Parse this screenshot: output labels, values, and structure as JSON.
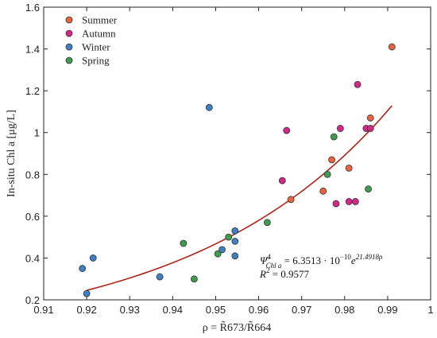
{
  "chart_data": {
    "type": "scatter",
    "xlabel": "ρ = R̃673/R̃664",
    "ylabel": "In-situ Chl a [μg/L]",
    "xlim": [
      0.91,
      1.0
    ],
    "ylim": [
      0.2,
      1.6
    ],
    "xticks": [
      "0.91",
      "0.92",
      "0.93",
      "0.94",
      "0.95",
      "0.96",
      "0.97",
      "0.98",
      "0.99",
      "1"
    ],
    "yticks": [
      "0.2",
      "0.4",
      "0.6",
      "0.8",
      "1",
      "1.2",
      "1.4",
      "1.6"
    ],
    "grid": false,
    "legend_position": "top-left",
    "series": [
      {
        "name": "Summer",
        "color": "#e8643c",
        "points": [
          [
            0.991,
            1.41
          ],
          [
            0.986,
            1.07
          ],
          [
            0.981,
            0.83
          ],
          [
            0.977,
            0.87
          ],
          [
            0.975,
            0.72
          ],
          [
            0.9675,
            0.68
          ]
        ]
      },
      {
        "name": "Autumn",
        "color": "#d4278a",
        "points": [
          [
            0.983,
            1.23
          ],
          [
            0.979,
            1.02
          ],
          [
            0.985,
            1.02
          ],
          [
            0.986,
            1.02
          ],
          [
            0.9665,
            1.01
          ],
          [
            0.9655,
            0.77
          ],
          [
            0.978,
            0.66
          ],
          [
            0.981,
            0.67
          ],
          [
            0.9825,
            0.67
          ]
        ]
      },
      {
        "name": "Winter",
        "color": "#3f7fc4",
        "points": [
          [
            0.9485,
            1.12
          ],
          [
            0.9545,
            0.53
          ],
          [
            0.9545,
            0.48
          ],
          [
            0.9545,
            0.41
          ],
          [
            0.9515,
            0.44
          ],
          [
            0.937,
            0.31
          ],
          [
            0.9215,
            0.4
          ],
          [
            0.919,
            0.35
          ],
          [
            0.92,
            0.23
          ]
        ]
      },
      {
        "name": "Spring",
        "color": "#3f9b4e",
        "points": [
          [
            0.9775,
            0.98
          ],
          [
            0.976,
            0.8
          ],
          [
            0.9855,
            0.73
          ],
          [
            0.962,
            0.57
          ],
          [
            0.953,
            0.5
          ],
          [
            0.9425,
            0.47
          ],
          [
            0.9505,
            0.42
          ],
          [
            0.945,
            0.3
          ]
        ]
      }
    ],
    "fit_curve": {
      "color": "#b02418",
      "a": 6.3513e-10,
      "b": 21.4918,
      "x_range": [
        0.92,
        0.991
      ]
    },
    "annotation": {
      "equation_prefix": "Ψ̃",
      "equation_sup": "4",
      "equation_sub": "Chl a",
      "equation_rhs": " = 6.3513 · 10",
      "equation_exp": "−10",
      "equation_e": "e",
      "equation_e_exp": "21.4918ρ",
      "r2_label": "R",
      "r2_sup": "2",
      "r2_value": " = 0.9577"
    }
  }
}
